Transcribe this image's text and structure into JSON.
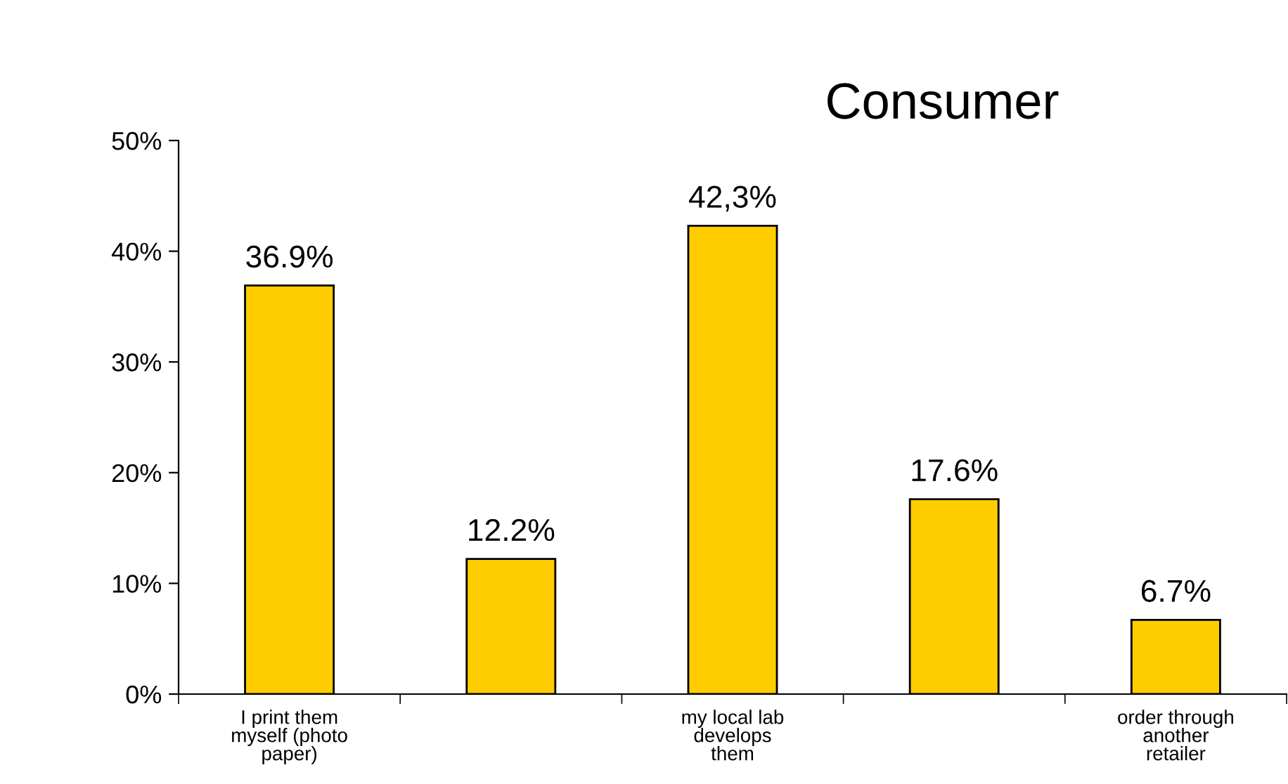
{
  "chart_data": {
    "type": "bar",
    "title": "Consumer",
    "categories": [
      "I print them\nmyself (photo\npaper)",
      null,
      "my local lab\ndevelops\nthem",
      null,
      "order through\nanother\nretailer"
    ],
    "values": [
      36.9,
      12.2,
      42.3,
      17.6,
      6.7
    ],
    "value_labels": [
      "36.9%",
      "12.2%",
      "42,3%",
      "17.6%",
      "6.7%"
    ],
    "color": "#ffcc00",
    "ylim": [
      0,
      50
    ],
    "yticks": [
      {
        "value": 0,
        "label": "0%"
      },
      {
        "value": 10,
        "label": "10%"
      },
      {
        "value": 20,
        "label": "20%"
      },
      {
        "value": 30,
        "label": "30%"
      },
      {
        "value": 40,
        "label": "40%"
      },
      {
        "value": 50,
        "label": "50%"
      }
    ],
    "grid": false,
    "legend": false
  }
}
